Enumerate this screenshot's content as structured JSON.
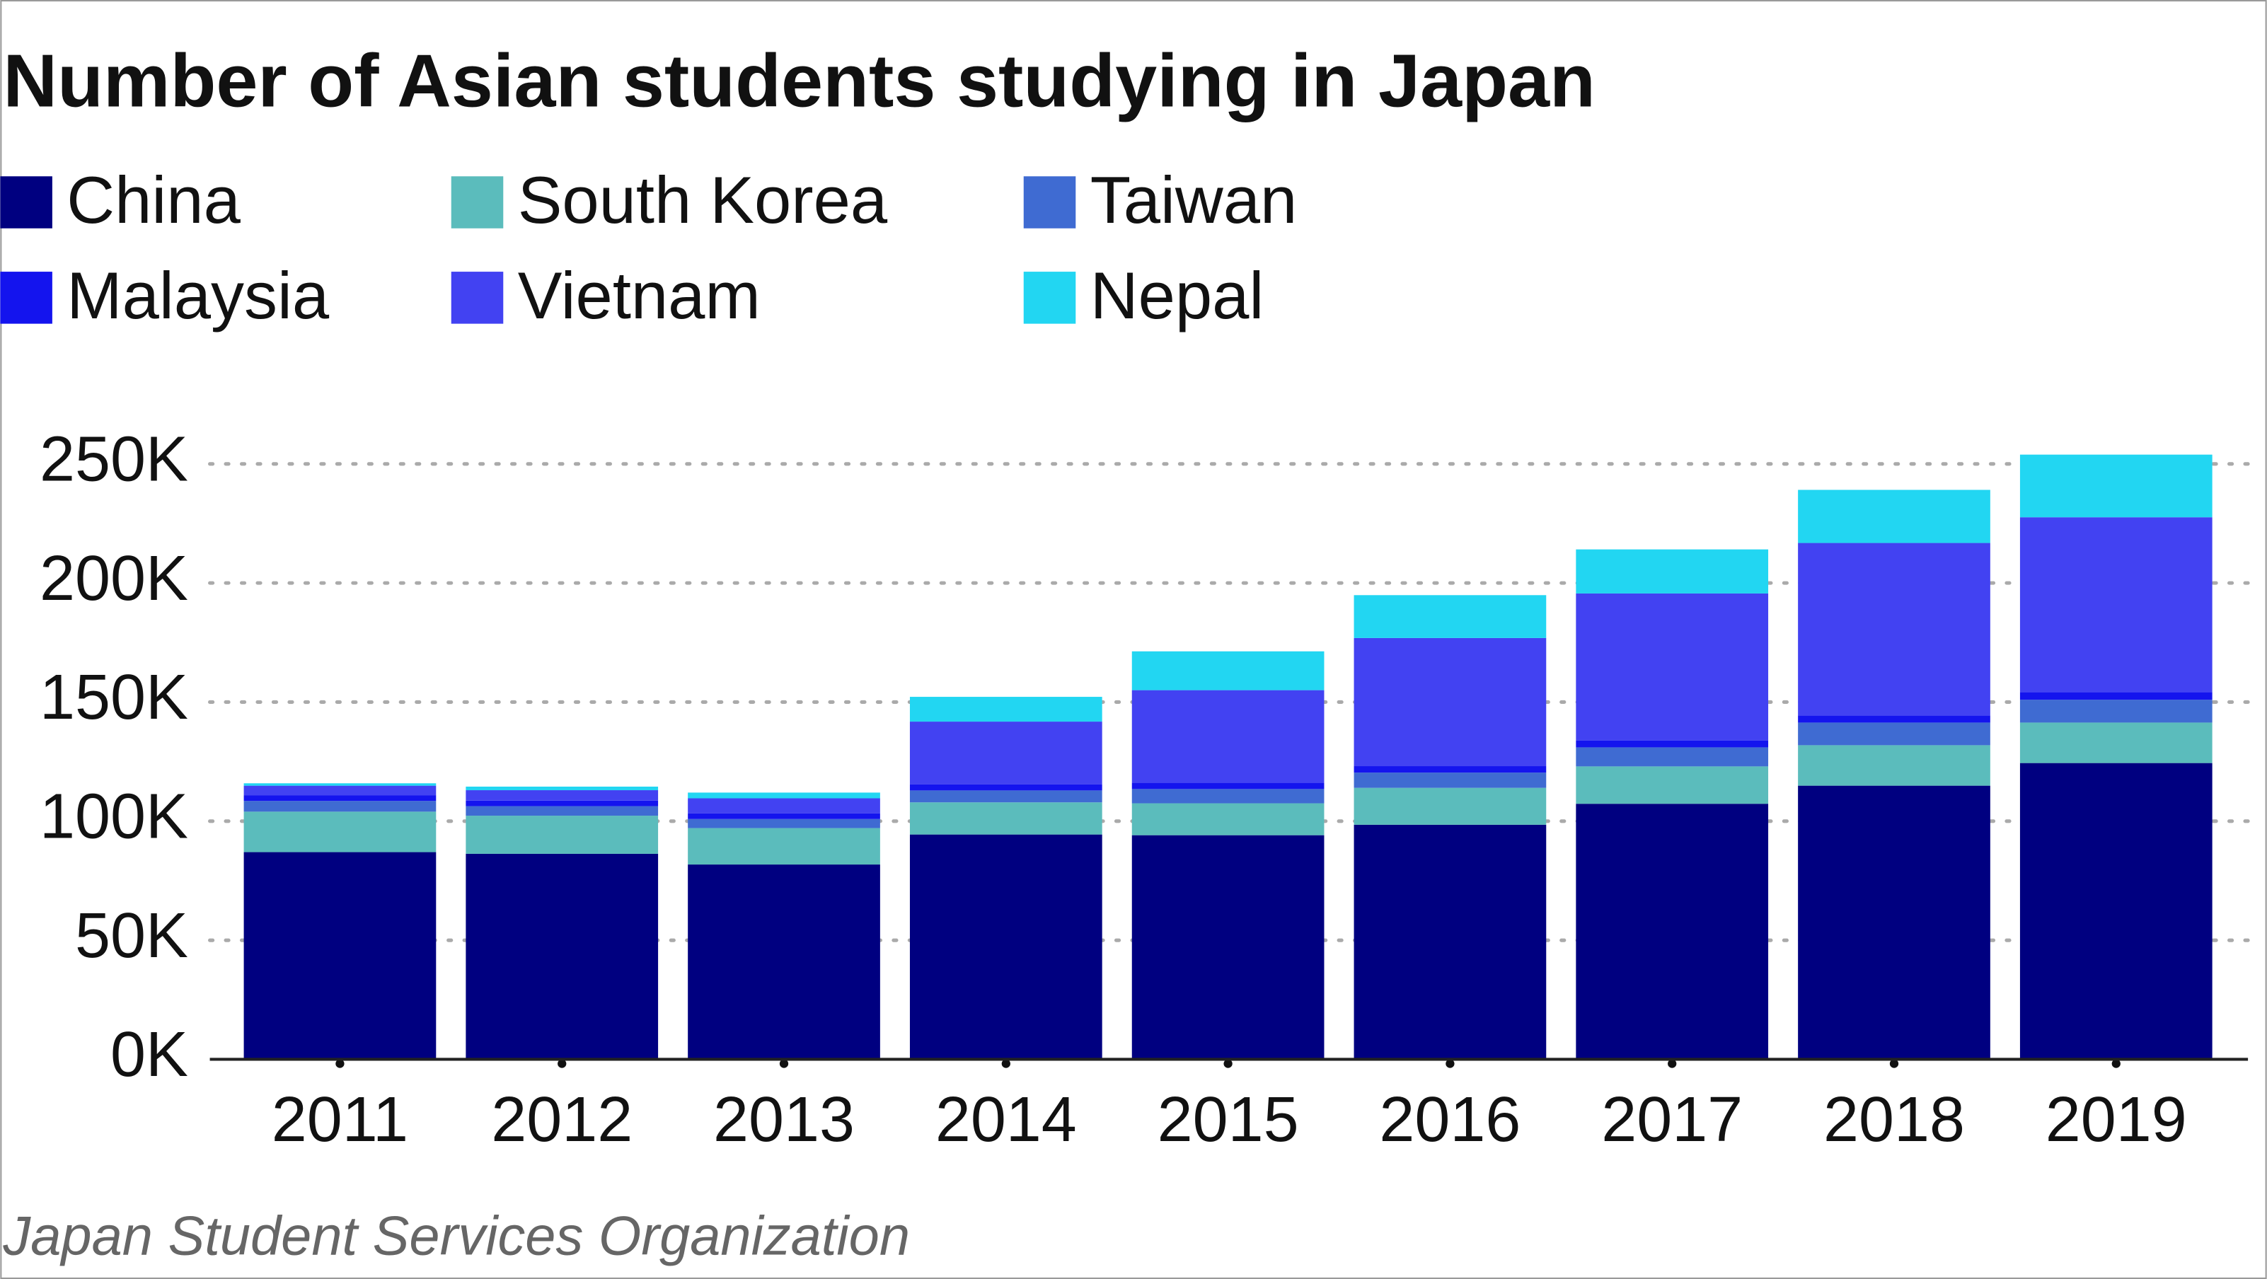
{
  "chart_data": {
    "type": "stacked_bar",
    "title": "Number of Asian students studying in Japan",
    "source": "Japan Student Services Organization",
    "categories": [
      "2011",
      "2012",
      "2013",
      "2014",
      "2015",
      "2016",
      "2017",
      "2018",
      "2019"
    ],
    "series": [
      {
        "name": "China",
        "color": "#000080",
        "values": [
          87000,
          86300,
          81800,
          94400,
          94100,
          98500,
          107300,
          114900,
          124400
        ]
      },
      {
        "name": "South Korea",
        "color": "#5bbcbc",
        "values": [
          17000,
          16000,
          15300,
          13500,
          13400,
          15500,
          15700,
          17000,
          17000
        ]
      },
      {
        "name": "Taiwan",
        "color": "#3f6bd2",
        "values": [
          4500,
          4000,
          3800,
          5000,
          6000,
          6400,
          8000,
          9500,
          9600
        ]
      },
      {
        "name": "Malaysia",
        "color": "#1414ee",
        "values": [
          2400,
          2300,
          2400,
          2500,
          2600,
          2700,
          2900,
          3000,
          3200
        ]
      },
      {
        "name": "Vietnam",
        "color": "#4242f2",
        "values": [
          4000,
          4400,
          6300,
          26400,
          38900,
          53800,
          61700,
          72400,
          73400
        ]
      },
      {
        "name": "Nepal",
        "color": "#22d6f2",
        "values": [
          1000,
          1500,
          2400,
          10400,
          16300,
          18000,
          18500,
          22300,
          26300
        ]
      }
    ],
    "ylim": [
      0,
      250000
    ],
    "yticks": [
      {
        "value": 0,
        "label": "0K"
      },
      {
        "value": 50000,
        "label": "50K"
      },
      {
        "value": 100000,
        "label": "100K"
      },
      {
        "value": 150000,
        "label": "150K"
      },
      {
        "value": 200000,
        "label": "200K"
      },
      {
        "value": 250000,
        "label": "250K"
      }
    ],
    "grid": true
  }
}
